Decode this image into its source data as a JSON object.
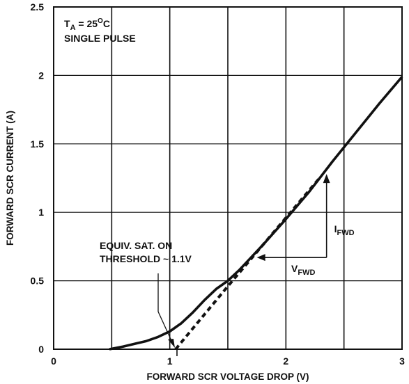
{
  "chart_data": {
    "type": "line",
    "xlabel": "FORWARD SCR VOLTAGE DROP (V)",
    "ylabel": "FORWARD SCR CURRENT (A)",
    "xlim": [
      0,
      3
    ],
    "ylim": [
      0,
      2.5
    ],
    "x_ticks": [
      "0",
      "1",
      "2",
      "3"
    ],
    "y_ticks": [
      "0",
      "0.5",
      "1",
      "1.5",
      "2",
      "2.5"
    ],
    "x_grid": [
      0.5,
      1,
      1.5,
      2,
      2.5,
      3
    ],
    "y_grid": [
      0.5,
      1,
      1.5,
      2,
      2.5
    ],
    "grid": true,
    "conditions": {
      "ta_main": "T",
      "ta_sub": "A",
      "ta_rest": " = 25",
      "ta_sup": "O",
      "ta_unit": "C",
      "pulse": "SINGLE PULSE"
    },
    "series": [
      {
        "style": "solid",
        "x": [
          0.48,
          0.6,
          0.7,
          0.8,
          0.9,
          1.0,
          1.1,
          1.2,
          1.3,
          1.4,
          1.5,
          1.6,
          1.8,
          2.0,
          2.2,
          2.4,
          2.6,
          2.8,
          3.0
        ],
        "y": [
          0.0,
          0.02,
          0.04,
          0.06,
          0.09,
          0.13,
          0.19,
          0.27,
          0.36,
          0.44,
          0.5,
          0.58,
          0.76,
          0.95,
          1.15,
          1.37,
          1.58,
          1.79,
          1.99
        ]
      },
      {
        "style": "dashed",
        "x": [
          1.05,
          1.5,
          2.0,
          2.3
        ],
        "y": [
          0.0,
          0.46,
          0.96,
          1.26
        ]
      }
    ],
    "annotations": {
      "threshold_line1": "EQUIV. SAT. ON",
      "threshold_line2": "THRESHOLD ~ 1.1V",
      "threshold_x": 1.05,
      "ifwd_main": "I",
      "ifwd_sub": "FWD",
      "vfwd_main": "V",
      "vfwd_sub": "FWD",
      "triangle_x": [
        1.75,
        2.35
      ],
      "triangle_y": [
        0.67,
        1.28
      ]
    }
  }
}
